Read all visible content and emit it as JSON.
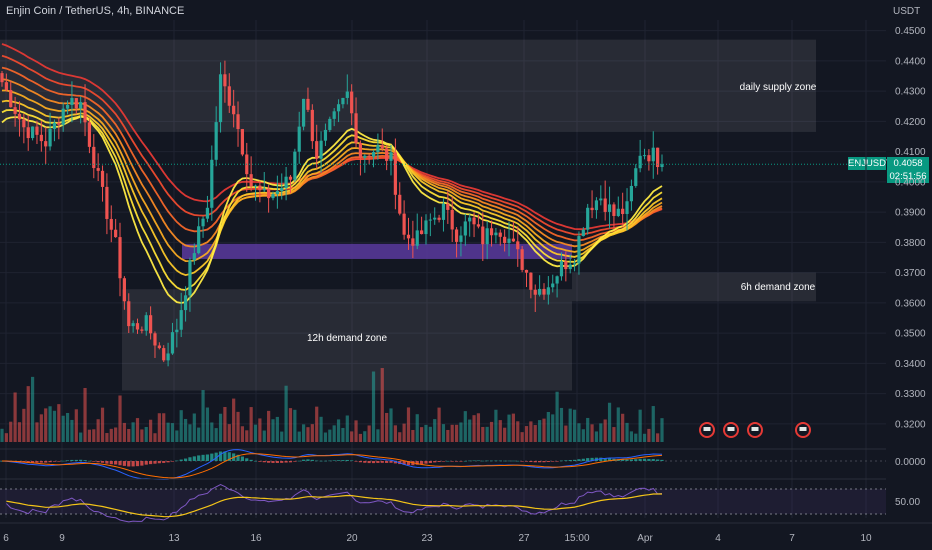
{
  "header": {
    "title": "Enjin Coin / TetherUS, 4h, BINANCE"
  },
  "price_axis": {
    "currency": "USDT",
    "ticks": [
      "0.4500",
      "0.4400",
      "0.4300",
      "0.4200",
      "0.4100",
      "0.4000",
      "0.3900",
      "0.3800",
      "0.3700",
      "0.3600",
      "0.3500",
      "0.3400",
      "0.3300",
      "0.3200"
    ],
    "macd_tick": "0.0000",
    "rsi_tick": "50.00"
  },
  "time_axis": {
    "ticks": [
      "6",
      "9",
      "13",
      "16",
      "20",
      "23",
      "27",
      "15:00",
      "Apr",
      "4",
      "7",
      "10"
    ]
  },
  "last_price": {
    "symbol": "ENJUSDT",
    "price": "0.4058",
    "countdown": "02:51:56"
  },
  "zones": [
    {
      "label": "daily supply zone",
      "top": 0.447,
      "bottom": 0.4165,
      "color": "#ffffff"
    },
    {
      "label": "6h demand zone",
      "top": 0.37,
      "bottom": 0.3605,
      "color": "#ffffff"
    },
    {
      "label": "12h demand zone",
      "top": 0.3645,
      "bottom": 0.331,
      "color": "#ffffff"
    },
    {
      "label": "",
      "top": 0.3795,
      "bottom": 0.3745,
      "color": "#5b3a9e"
    }
  ],
  "chart_data": {
    "type": "candlestick",
    "title": "Enjin Coin / TetherUS, 4h, BINANCE",
    "ylim": [
      0.313,
      0.4535
    ],
    "colors": {
      "up": "#26a69a",
      "down": "#ef5350"
    },
    "price_path": [
      [
        0,
        0.433
      ],
      [
        5,
        0.418
      ],
      [
        10,
        0.413
      ],
      [
        15,
        0.427
      ],
      [
        18,
        0.426
      ],
      [
        22,
        0.401
      ],
      [
        26,
        0.379
      ],
      [
        29,
        0.352
      ],
      [
        33,
        0.353
      ],
      [
        37,
        0.342
      ],
      [
        40,
        0.352
      ],
      [
        44,
        0.378
      ],
      [
        47,
        0.393
      ],
      [
        50,
        0.434
      ],
      [
        53,
        0.424
      ],
      [
        57,
        0.399
      ],
      [
        60,
        0.395
      ],
      [
        63,
        0.397
      ],
      [
        66,
        0.401
      ],
      [
        69,
        0.429
      ],
      [
        72,
        0.409
      ],
      [
        75,
        0.418
      ],
      [
        79,
        0.429
      ],
      [
        82,
        0.409
      ],
      [
        86,
        0.411
      ],
      [
        89,
        0.407
      ],
      [
        92,
        0.382
      ],
      [
        95,
        0.381
      ],
      [
        98,
        0.387
      ],
      [
        101,
        0.391
      ],
      [
        104,
        0.383
      ],
      [
        107,
        0.387
      ],
      [
        110,
        0.381
      ],
      [
        113,
        0.386
      ],
      [
        116,
        0.381
      ],
      [
        119,
        0.373
      ],
      [
        122,
        0.364
      ],
      [
        125,
        0.366
      ],
      [
        128,
        0.372
      ],
      [
        131,
        0.376
      ],
      [
        134,
        0.392
      ],
      [
        137,
        0.395
      ],
      [
        140,
        0.389
      ],
      [
        143,
        0.391
      ],
      [
        146,
        0.41
      ],
      [
        149,
        0.409
      ],
      [
        151,
        0.4058
      ]
    ],
    "ribbon": {
      "colors": [
        "#e53935",
        "#ef4b2f",
        "#f4662a",
        "#f78a24",
        "#f9ab22",
        "#fbc829",
        "#fde036",
        "#ffeb45"
      ]
    },
    "volume": {
      "max_relative": 1.0
    },
    "indicators": [
      "MACD",
      "RSI"
    ],
    "event_markers": [
      4,
      7,
      8,
      11
    ]
  }
}
